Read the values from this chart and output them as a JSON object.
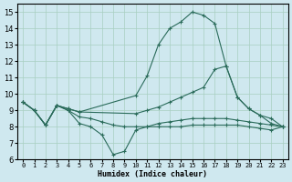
{
  "xlabel": "Humidex (Indice chaleur)",
  "bg_color": "#cfe8ef",
  "grid_color": "#a8cfc0",
  "line_color": "#2a6b5a",
  "xlim": [
    -0.5,
    23.5
  ],
  "ylim": [
    6,
    15.5
  ],
  "yticks": [
    6,
    7,
    8,
    9,
    10,
    11,
    12,
    13,
    14,
    15
  ],
  "xticks": [
    0,
    1,
    2,
    3,
    4,
    5,
    6,
    7,
    8,
    9,
    10,
    11,
    12,
    13,
    14,
    15,
    16,
    17,
    18,
    19,
    20,
    21,
    22,
    23
  ],
  "lines": [
    {
      "x": [
        0,
        1,
        2,
        3,
        4,
        5,
        10,
        11,
        12,
        13,
        14,
        15,
        16,
        17,
        18,
        19,
        20,
        21,
        22,
        23
      ],
      "y": [
        9.5,
        9.0,
        8.1,
        9.3,
        9.1,
        8.9,
        9.9,
        11.1,
        13.0,
        14.0,
        14.4,
        15.0,
        14.8,
        14.3,
        11.7,
        9.8,
        9.1,
        8.7,
        8.2,
        8.0
      ]
    },
    {
      "x": [
        0,
        1,
        2,
        3,
        4,
        5,
        10,
        11,
        12,
        13,
        14,
        15,
        16,
        17,
        18,
        19,
        20,
        21,
        22,
        23
      ],
      "y": [
        9.5,
        9.0,
        8.1,
        9.3,
        9.1,
        8.9,
        8.8,
        9.0,
        9.2,
        9.5,
        9.8,
        10.1,
        10.4,
        11.5,
        11.7,
        9.8,
        9.1,
        8.7,
        8.5,
        8.0
      ]
    },
    {
      "x": [
        0,
        1,
        2,
        3,
        4,
        5,
        6,
        7,
        8,
        9,
        10,
        11,
        12,
        13,
        14,
        15,
        16,
        17,
        18,
        19,
        20,
        21,
        22,
        23
      ],
      "y": [
        9.5,
        9.0,
        8.1,
        9.3,
        9.0,
        8.2,
        8.0,
        7.5,
        6.3,
        6.5,
        7.8,
        8.0,
        8.2,
        8.3,
        8.4,
        8.5,
        8.5,
        8.5,
        8.5,
        8.4,
        8.3,
        8.2,
        8.1,
        8.0
      ]
    },
    {
      "x": [
        0,
        1,
        2,
        3,
        4,
        5,
        6,
        7,
        8,
        9,
        10,
        11,
        12,
        13,
        14,
        15,
        16,
        17,
        18,
        19,
        20,
        21,
        22,
        23
      ],
      "y": [
        9.5,
        9.0,
        8.1,
        9.3,
        9.0,
        8.6,
        8.5,
        8.3,
        8.1,
        8.0,
        8.0,
        8.0,
        8.0,
        8.0,
        8.0,
        8.1,
        8.1,
        8.1,
        8.1,
        8.1,
        8.0,
        7.9,
        7.8,
        8.0
      ]
    }
  ]
}
